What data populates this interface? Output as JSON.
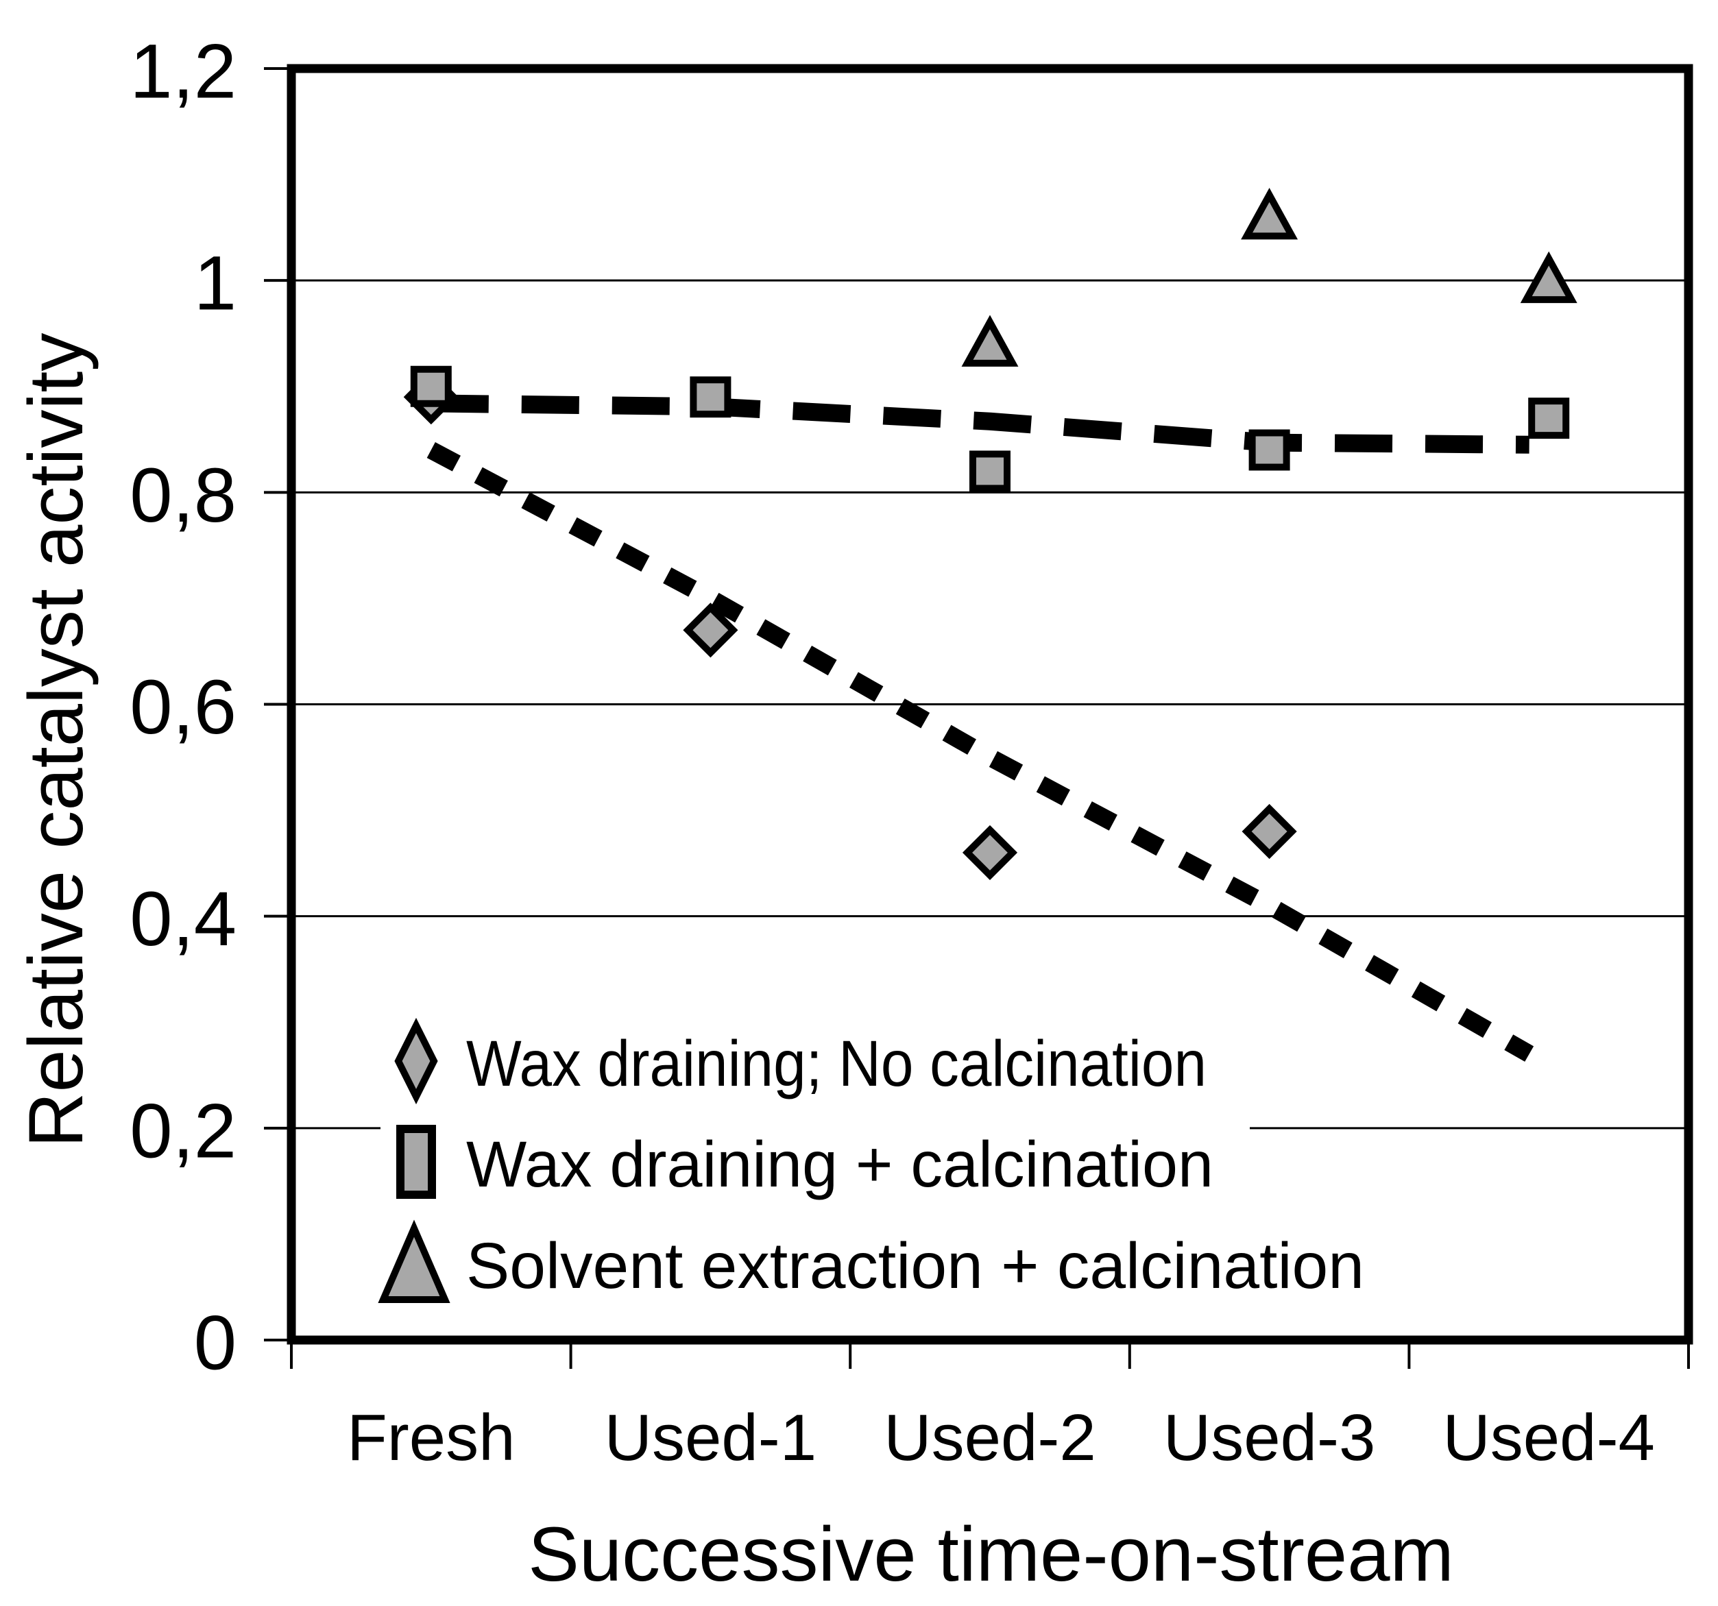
{
  "chart_data": {
    "type": "scatter",
    "title": "",
    "xlabel": "Successive time-on-stream",
    "ylabel": "Relative catalyst activity",
    "categories": [
      "Fresh",
      "Used-1",
      "Used-2",
      "Used-3",
      "Used-4"
    ],
    "y_axis": {
      "ticks": [
        "1,2",
        "1",
        "0,8",
        "0,6",
        "0,4",
        "0,2",
        "0"
      ],
      "tick_values": [
        1.2,
        1.0,
        0.8,
        0.6,
        0.4,
        0.2,
        0
      ],
      "range": [
        0,
        1.2
      ],
      "decimal_separator": ","
    },
    "grid": "horizontal gridlines every 0.2, gridline at 0.2 hidden behind legend",
    "legend_position": "inside lower-left",
    "series": [
      {
        "name": "Wax draining; No calcination",
        "marker": "diamond",
        "values": [
          0.89,
          0.67,
          0.46,
          0.48,
          null
        ],
        "trendline": {
          "style": "dotted",
          "points": [
            {
              "x": 0,
              "y": 0.84
            },
            {
              "x": 1,
              "y": 0.7
            },
            {
              "x": 2,
              "y": 0.55
            },
            {
              "x": 3,
              "y": 0.41
            },
            {
              "x": 3.93,
              "y": 0.27
            }
          ]
        }
      },
      {
        "name": "Wax draining + calcination",
        "marker": "square",
        "values": [
          0.9,
          0.89,
          0.82,
          0.84,
          0.87
        ],
        "trendline": {
          "style": "dashed",
          "points": [
            {
              "x": 0,
              "y": 0.884
            },
            {
              "x": 1,
              "y": 0.881
            },
            {
              "x": 2,
              "y": 0.867
            },
            {
              "x": 3,
              "y": 0.847
            },
            {
              "x": 3.93,
              "y": 0.845
            }
          ]
        }
      },
      {
        "name": "Solvent extraction + calcination",
        "marker": "triangle",
        "values": [
          null,
          null,
          0.94,
          1.06,
          1.0
        ],
        "trendline": null
      }
    ],
    "colors": {
      "marker_fill": "#a8a8a8",
      "marker_stroke": "#000000",
      "axis": "#000000",
      "background": "#ffffff"
    }
  }
}
